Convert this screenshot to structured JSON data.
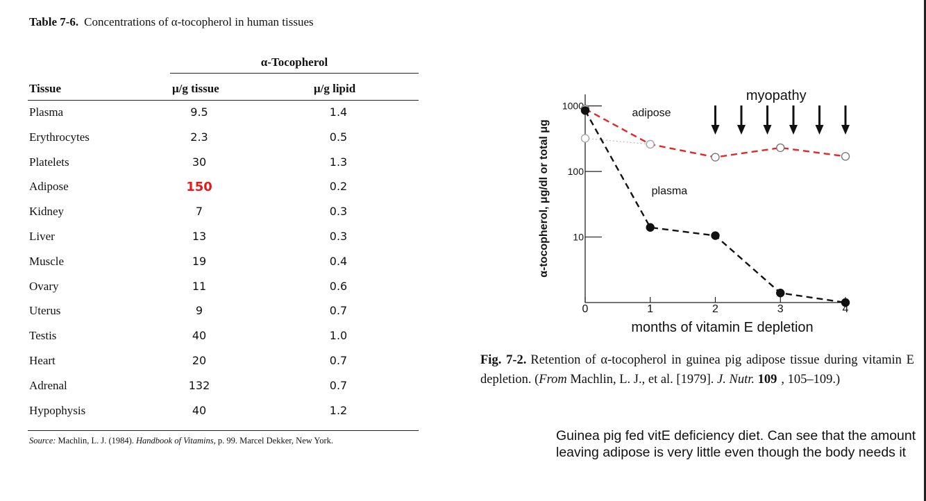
{
  "table": {
    "caption_label": "Table 7-6.",
    "caption_text": "Concentrations of α-tocopherol in human tissues",
    "group_header": "α-Tocopherol",
    "columns": [
      "Tissue",
      "μ/g tissue",
      "μ/g lipid"
    ],
    "rows": [
      {
        "tissue": "Plasma",
        "per_tissue": "9.5",
        "per_lipid": "1.4"
      },
      {
        "tissue": "Erythrocytes",
        "per_tissue": "2.3",
        "per_lipid": "0.5"
      },
      {
        "tissue": "Platelets",
        "per_tissue": "30",
        "per_lipid": "1.3"
      },
      {
        "tissue": "Adipose",
        "per_tissue": "150",
        "per_lipid": "0.2",
        "highlight": true
      },
      {
        "tissue": "Kidney",
        "per_tissue": "7",
        "per_lipid": "0.3"
      },
      {
        "tissue": "Liver",
        "per_tissue": "13",
        "per_lipid": "0.3"
      },
      {
        "tissue": "Muscle",
        "per_tissue": "19",
        "per_lipid": "0.4"
      },
      {
        "tissue": "Ovary",
        "per_tissue": "11",
        "per_lipid": "0.6"
      },
      {
        "tissue": "Uterus",
        "per_tissue": "9",
        "per_lipid": "0.7"
      },
      {
        "tissue": "Testis",
        "per_tissue": "40",
        "per_lipid": "1.0"
      },
      {
        "tissue": "Heart",
        "per_tissue": "20",
        "per_lipid": "0.7"
      },
      {
        "tissue": "Adrenal",
        "per_tissue": "132",
        "per_lipid": "0.7"
      },
      {
        "tissue": "Hypophysis",
        "per_tissue": "40",
        "per_lipid": "1.2"
      }
    ],
    "source": {
      "label": "Source:",
      "author": "Machlin, L. J. (1984).",
      "title": "Handbook of Vitamins,",
      "rest": "p. 99. Marcel Dekker, New York."
    }
  },
  "chart_data": {
    "type": "line",
    "yscale": "log",
    "xlabel": "months of vitamin E depletion",
    "ylabel": "α-tocopherol, μg/dl or total μg",
    "xlim": [
      0,
      4
    ],
    "ylim": [
      1,
      1500
    ],
    "x_ticks": [
      "0",
      "1",
      "2",
      "3",
      "4"
    ],
    "y_ticks": [
      {
        "value": 10,
        "label": "10"
      },
      {
        "value": 100,
        "label": "100"
      },
      {
        "value": 1000,
        "label": "1000"
      }
    ],
    "series": [
      {
        "name": "adipose",
        "color": "#e32626",
        "marker": "open",
        "x": [
          0,
          1,
          2,
          3,
          4
        ],
        "values": [
          900,
          260,
          165,
          230,
          170
        ]
      },
      {
        "name": "plasma",
        "color": "#111111",
        "marker": "filled",
        "x": [
          0,
          1,
          2,
          3,
          4
        ],
        "values": [
          850,
          14,
          10.5,
          1.4,
          1
        ]
      },
      {
        "name": "early adipose",
        "color": "#bbbbbb",
        "marker": "open",
        "x": [
          0,
          1
        ],
        "values": [
          320,
          260
        ]
      }
    ],
    "annotations": {
      "myopathy_label": "myopathy",
      "myopathy_arrow_x": [
        2,
        2.4,
        2.8,
        3.2,
        3.6,
        4
      ],
      "adipose_label": "adipose",
      "plasma_label": "plasma"
    }
  },
  "figure": {
    "caption_label": "Fig. 7-2.",
    "caption_text": "Retention of α-tocopherol in guinea pig adipose tissue during vitamin E depletion. (",
    "from": "From",
    "authors": " Machlin, L. J., et al. [1979]. ",
    "journal": "J. Nutr.",
    "volume": "109",
    "pages": ", 105–109.)"
  },
  "note": "Guinea pig fed vitE deficiency diet. Can see that the amount leaving adipose is very little even though the body needs it",
  "colors": {
    "highlight": "#e31b1b",
    "adipose_line": "#e32626"
  }
}
